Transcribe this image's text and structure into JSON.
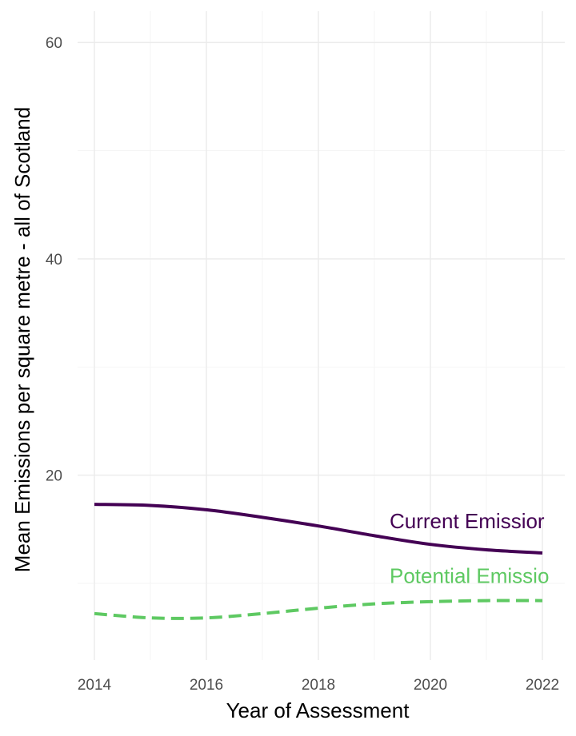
{
  "chart_data": {
    "type": "line",
    "title": "",
    "xlabel": "Year of Assessment",
    "ylabel": "Mean Emissions per square metre - all of Scotland",
    "xlim": [
      2013.7,
      2022.4
    ],
    "ylim": [
      2.9,
      62.9
    ],
    "x_ticks": [
      2014,
      2016,
      2018,
      2020,
      2022
    ],
    "y_ticks": [
      20,
      40,
      60
    ],
    "grid": true,
    "legend": "none",
    "x": [
      2014,
      2015,
      2016,
      2017,
      2018,
      2019,
      2020,
      2021,
      2022
    ],
    "series": [
      {
        "name": "Current Emissions",
        "display_label": "Current Emissior",
        "color": "#440154",
        "dash": "solid",
        "values": [
          17.3,
          17.2,
          16.8,
          16.1,
          15.3,
          14.4,
          13.6,
          13.1,
          12.8
        ]
      },
      {
        "name": "Potential Emissions",
        "display_label": "Potential Emissio",
        "color": "#5ec962",
        "dash": "dashed",
        "values": [
          7.2,
          6.8,
          6.8,
          7.2,
          7.7,
          8.1,
          8.3,
          8.4,
          8.4
        ]
      }
    ]
  }
}
